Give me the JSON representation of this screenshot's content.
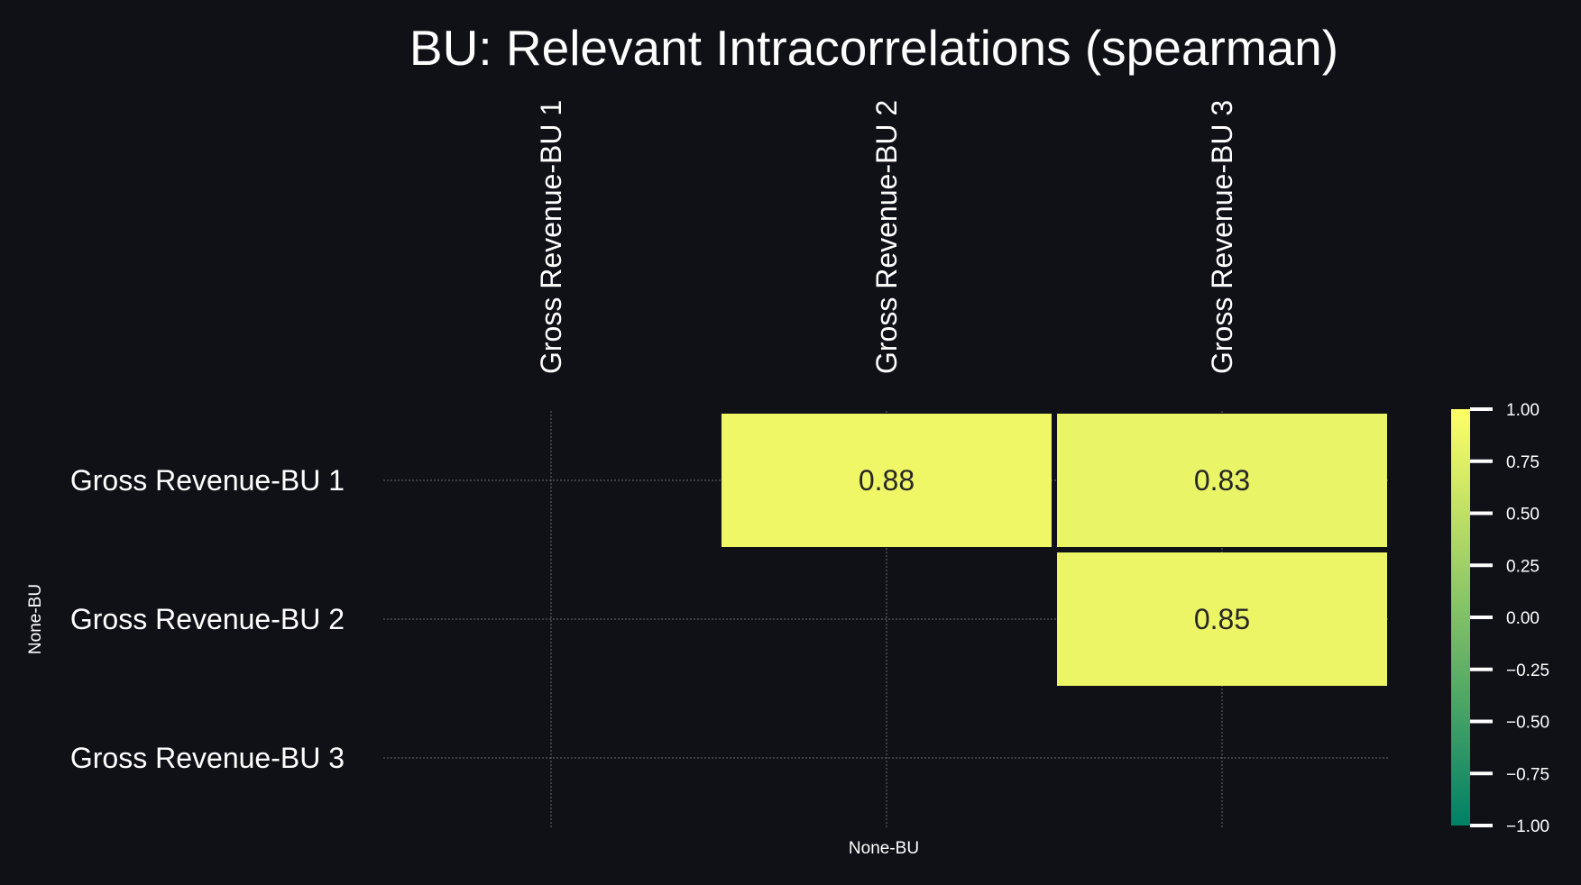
{
  "chart_data": {
    "type": "heatmap",
    "title": "BU: Relevant Intracorrelations (spearman)",
    "xlabel": "None-BU",
    "ylabel": "None-BU",
    "x_categories": [
      "Gross Revenue-BU 1",
      "Gross Revenue-BU 2",
      "Gross Revenue-BU 3"
    ],
    "y_categories": [
      "Gross Revenue-BU 1",
      "Gross Revenue-BU 2",
      "Gross Revenue-BU 3"
    ],
    "cells": [
      {
        "row": 0,
        "col": 1,
        "value": 0.88,
        "label": "0.88"
      },
      {
        "row": 0,
        "col": 2,
        "value": 0.83,
        "label": "0.83"
      },
      {
        "row": 1,
        "col": 2,
        "value": 0.85,
        "label": "0.85"
      }
    ],
    "colorbar": {
      "range": [
        -1,
        1
      ],
      "colormap": "summer",
      "color_low": "#008066",
      "color_high": "#ffff66",
      "ticks": [
        1.0,
        0.75,
        0.5,
        0.25,
        0.0,
        -0.25,
        -0.5,
        -0.75,
        -1.0
      ],
      "tick_labels": [
        "1.00",
        "0.75",
        "0.50",
        "0.25",
        "0.00",
        "−0.25",
        "−0.50",
        "−0.75",
        "−1.00"
      ]
    },
    "grid": true,
    "background": "#0f1117",
    "cell_gap_color": "#0f1117"
  }
}
